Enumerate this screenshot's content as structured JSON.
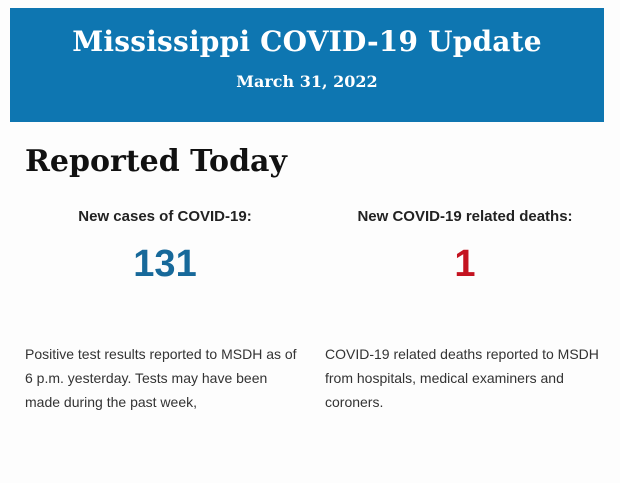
{
  "header": {
    "title": "Mississippi COVID-19 Update",
    "date": "March 31, 2022",
    "bg_color": "#0e76b1",
    "text_color": "#ffffff"
  },
  "section": {
    "heading": "Reported Today"
  },
  "stats": [
    {
      "label": "New cases of COVID-19:",
      "value": "131",
      "value_color": "#17699a",
      "description": "Positive test results reported to MSDH as of 6 p.m. yesterday. Tests may have been made during the past week,"
    },
    {
      "label": "New COVID-19 related deaths:",
      "value": "1",
      "value_color": "#c41320",
      "description": "COVID-19 related deaths reported to MSDH from hospitals, medical examiners and coroners."
    }
  ]
}
